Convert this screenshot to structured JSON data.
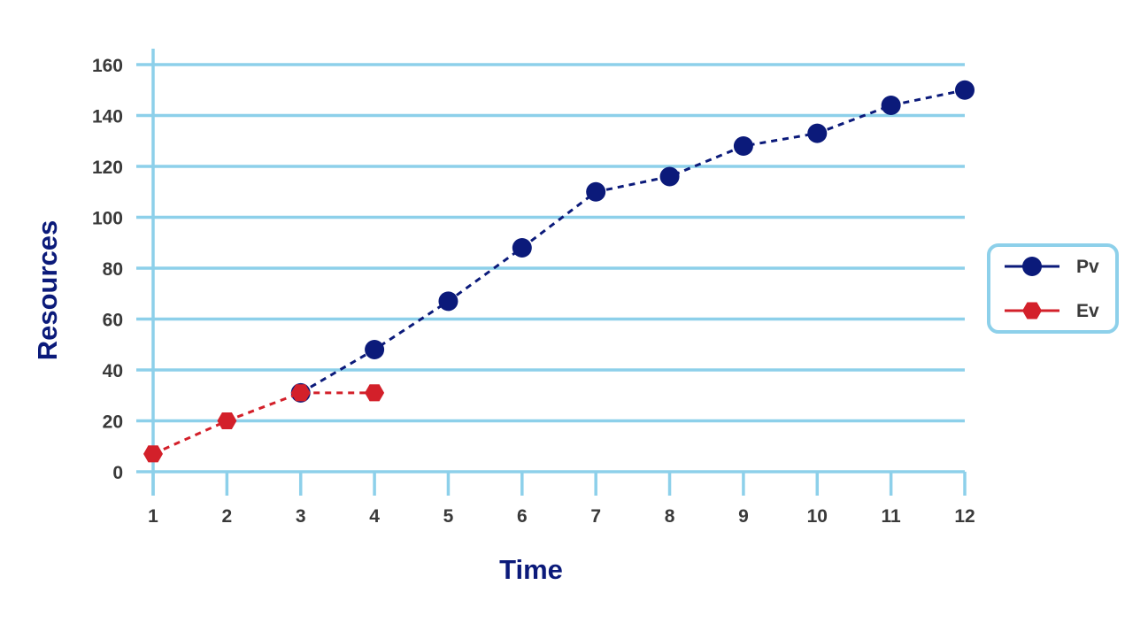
{
  "chart_data": {
    "type": "line",
    "xlabel": "Time",
    "ylabel": "Resources",
    "x": [
      1,
      2,
      3,
      4,
      5,
      6,
      7,
      8,
      9,
      10,
      11,
      12
    ],
    "xlim": [
      1,
      12
    ],
    "ylim": [
      0,
      160
    ],
    "yticks": [
      0,
      20,
      40,
      60,
      80,
      100,
      120,
      140,
      160
    ],
    "grid": true,
    "legend_position": "right",
    "series": [
      {
        "name": "Pv",
        "marker": "circle",
        "line_style": "dashed",
        "color": "#0b1a7a",
        "x": [
          3,
          4,
          5,
          6,
          7,
          8,
          9,
          10,
          11,
          12
        ],
        "values": [
          31,
          48,
          67,
          88,
          110,
          116,
          128,
          133,
          144,
          150
        ]
      },
      {
        "name": "Ev",
        "marker": "hexagon",
        "line_style": "dashed",
        "color": "#d3202a",
        "x": [
          1,
          2,
          3,
          4
        ],
        "values": [
          7,
          20,
          31,
          31
        ]
      }
    ]
  },
  "colors": {
    "grid": "#8dd0ea",
    "axis": "#8dd0ea",
    "title": "#0b1a7a",
    "legend_border": "#8dd0ea"
  }
}
